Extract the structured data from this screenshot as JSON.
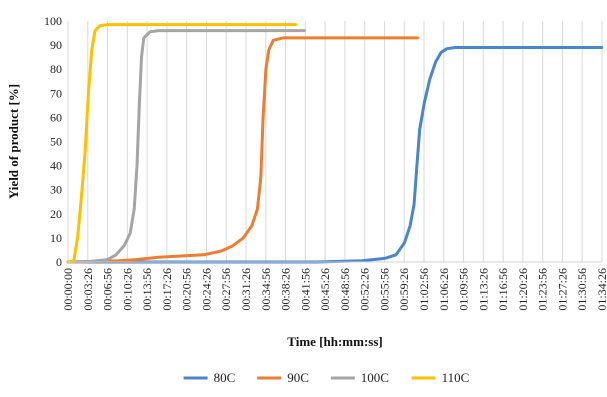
{
  "chart_data": {
    "type": "line",
    "title": "",
    "xlabel": "Time [hh:mm:ss]",
    "ylabel": "Yield of product [%]",
    "ylim": [
      0,
      100
    ],
    "yticks": [
      0,
      10,
      20,
      30,
      40,
      50,
      60,
      70,
      80,
      90,
      100
    ],
    "x_tick_labels": [
      "00:00:00",
      "00:03:26",
      "00:06:56",
      "00:10:26",
      "00:13:56",
      "00:17:26",
      "00:20:56",
      "00:24:26",
      "00:27:56",
      "00:31:26",
      "00:34:56",
      "00:38:26",
      "00:41:56",
      "00:45:26",
      "00:48:56",
      "00:52:26",
      "00:55:56",
      "00:59:26",
      "01:02:56",
      "01:06:26",
      "01:09:56",
      "01:13:26",
      "01:16:56",
      "01:20:26",
      "01:23:56",
      "01:27:26",
      "01:30:56",
      "01:34:26"
    ],
    "x_unit": "minutes",
    "xlim": [
      0,
      94.43
    ],
    "grid": "vertical",
    "legend_position": "bottom",
    "series": [
      {
        "name": "80C",
        "color": "#4a86c8",
        "points": [
          [
            0,
            0
          ],
          [
            44,
            0
          ],
          [
            52,
            0.5
          ],
          [
            56,
            1.5
          ],
          [
            58,
            3
          ],
          [
            59.5,
            8
          ],
          [
            60.5,
            15
          ],
          [
            61.2,
            24
          ],
          [
            61.7,
            40
          ],
          [
            62.2,
            55
          ],
          [
            63,
            66
          ],
          [
            64,
            76
          ],
          [
            65,
            83
          ],
          [
            66,
            87
          ],
          [
            67,
            88.5
          ],
          [
            68.5,
            89
          ],
          [
            76,
            89
          ],
          [
            94.4,
            89
          ]
        ]
      },
      {
        "name": "90C",
        "color": "#ed7d31",
        "points": [
          [
            0,
            0
          ],
          [
            9,
            0.5
          ],
          [
            12,
            1
          ],
          [
            16,
            2
          ],
          [
            20,
            2.5
          ],
          [
            24,
            3
          ],
          [
            27,
            4.5
          ],
          [
            29,
            6.5
          ],
          [
            31,
            10
          ],
          [
            32.5,
            15
          ],
          [
            33.5,
            22
          ],
          [
            34.1,
            35
          ],
          [
            34.5,
            60
          ],
          [
            35,
            80
          ],
          [
            35.5,
            88
          ],
          [
            36.3,
            92
          ],
          [
            38,
            93
          ],
          [
            45,
            93
          ],
          [
            61.8,
            93
          ]
        ]
      },
      {
        "name": "100C",
        "color": "#a5a5a5",
        "points": [
          [
            0,
            0
          ],
          [
            4,
            0.2
          ],
          [
            7,
            1
          ],
          [
            8.5,
            3
          ],
          [
            10,
            7
          ],
          [
            11,
            12
          ],
          [
            11.7,
            22
          ],
          [
            12.2,
            40
          ],
          [
            12.6,
            65
          ],
          [
            13,
            85
          ],
          [
            13.4,
            93
          ],
          [
            14.5,
            95.5
          ],
          [
            16,
            96
          ],
          [
            25,
            96
          ],
          [
            41.8,
            96
          ]
        ]
      },
      {
        "name": "110C",
        "color": "#ffc000",
        "points": [
          [
            0,
            0
          ],
          [
            1,
            0.5
          ],
          [
            1.7,
            10
          ],
          [
            2.3,
            25
          ],
          [
            3,
            45
          ],
          [
            3.6,
            70
          ],
          [
            4.2,
            88
          ],
          [
            4.8,
            96
          ],
          [
            5.6,
            98
          ],
          [
            7,
            98.5
          ],
          [
            20,
            98.5
          ],
          [
            40.3,
            98.5
          ]
        ]
      }
    ]
  }
}
